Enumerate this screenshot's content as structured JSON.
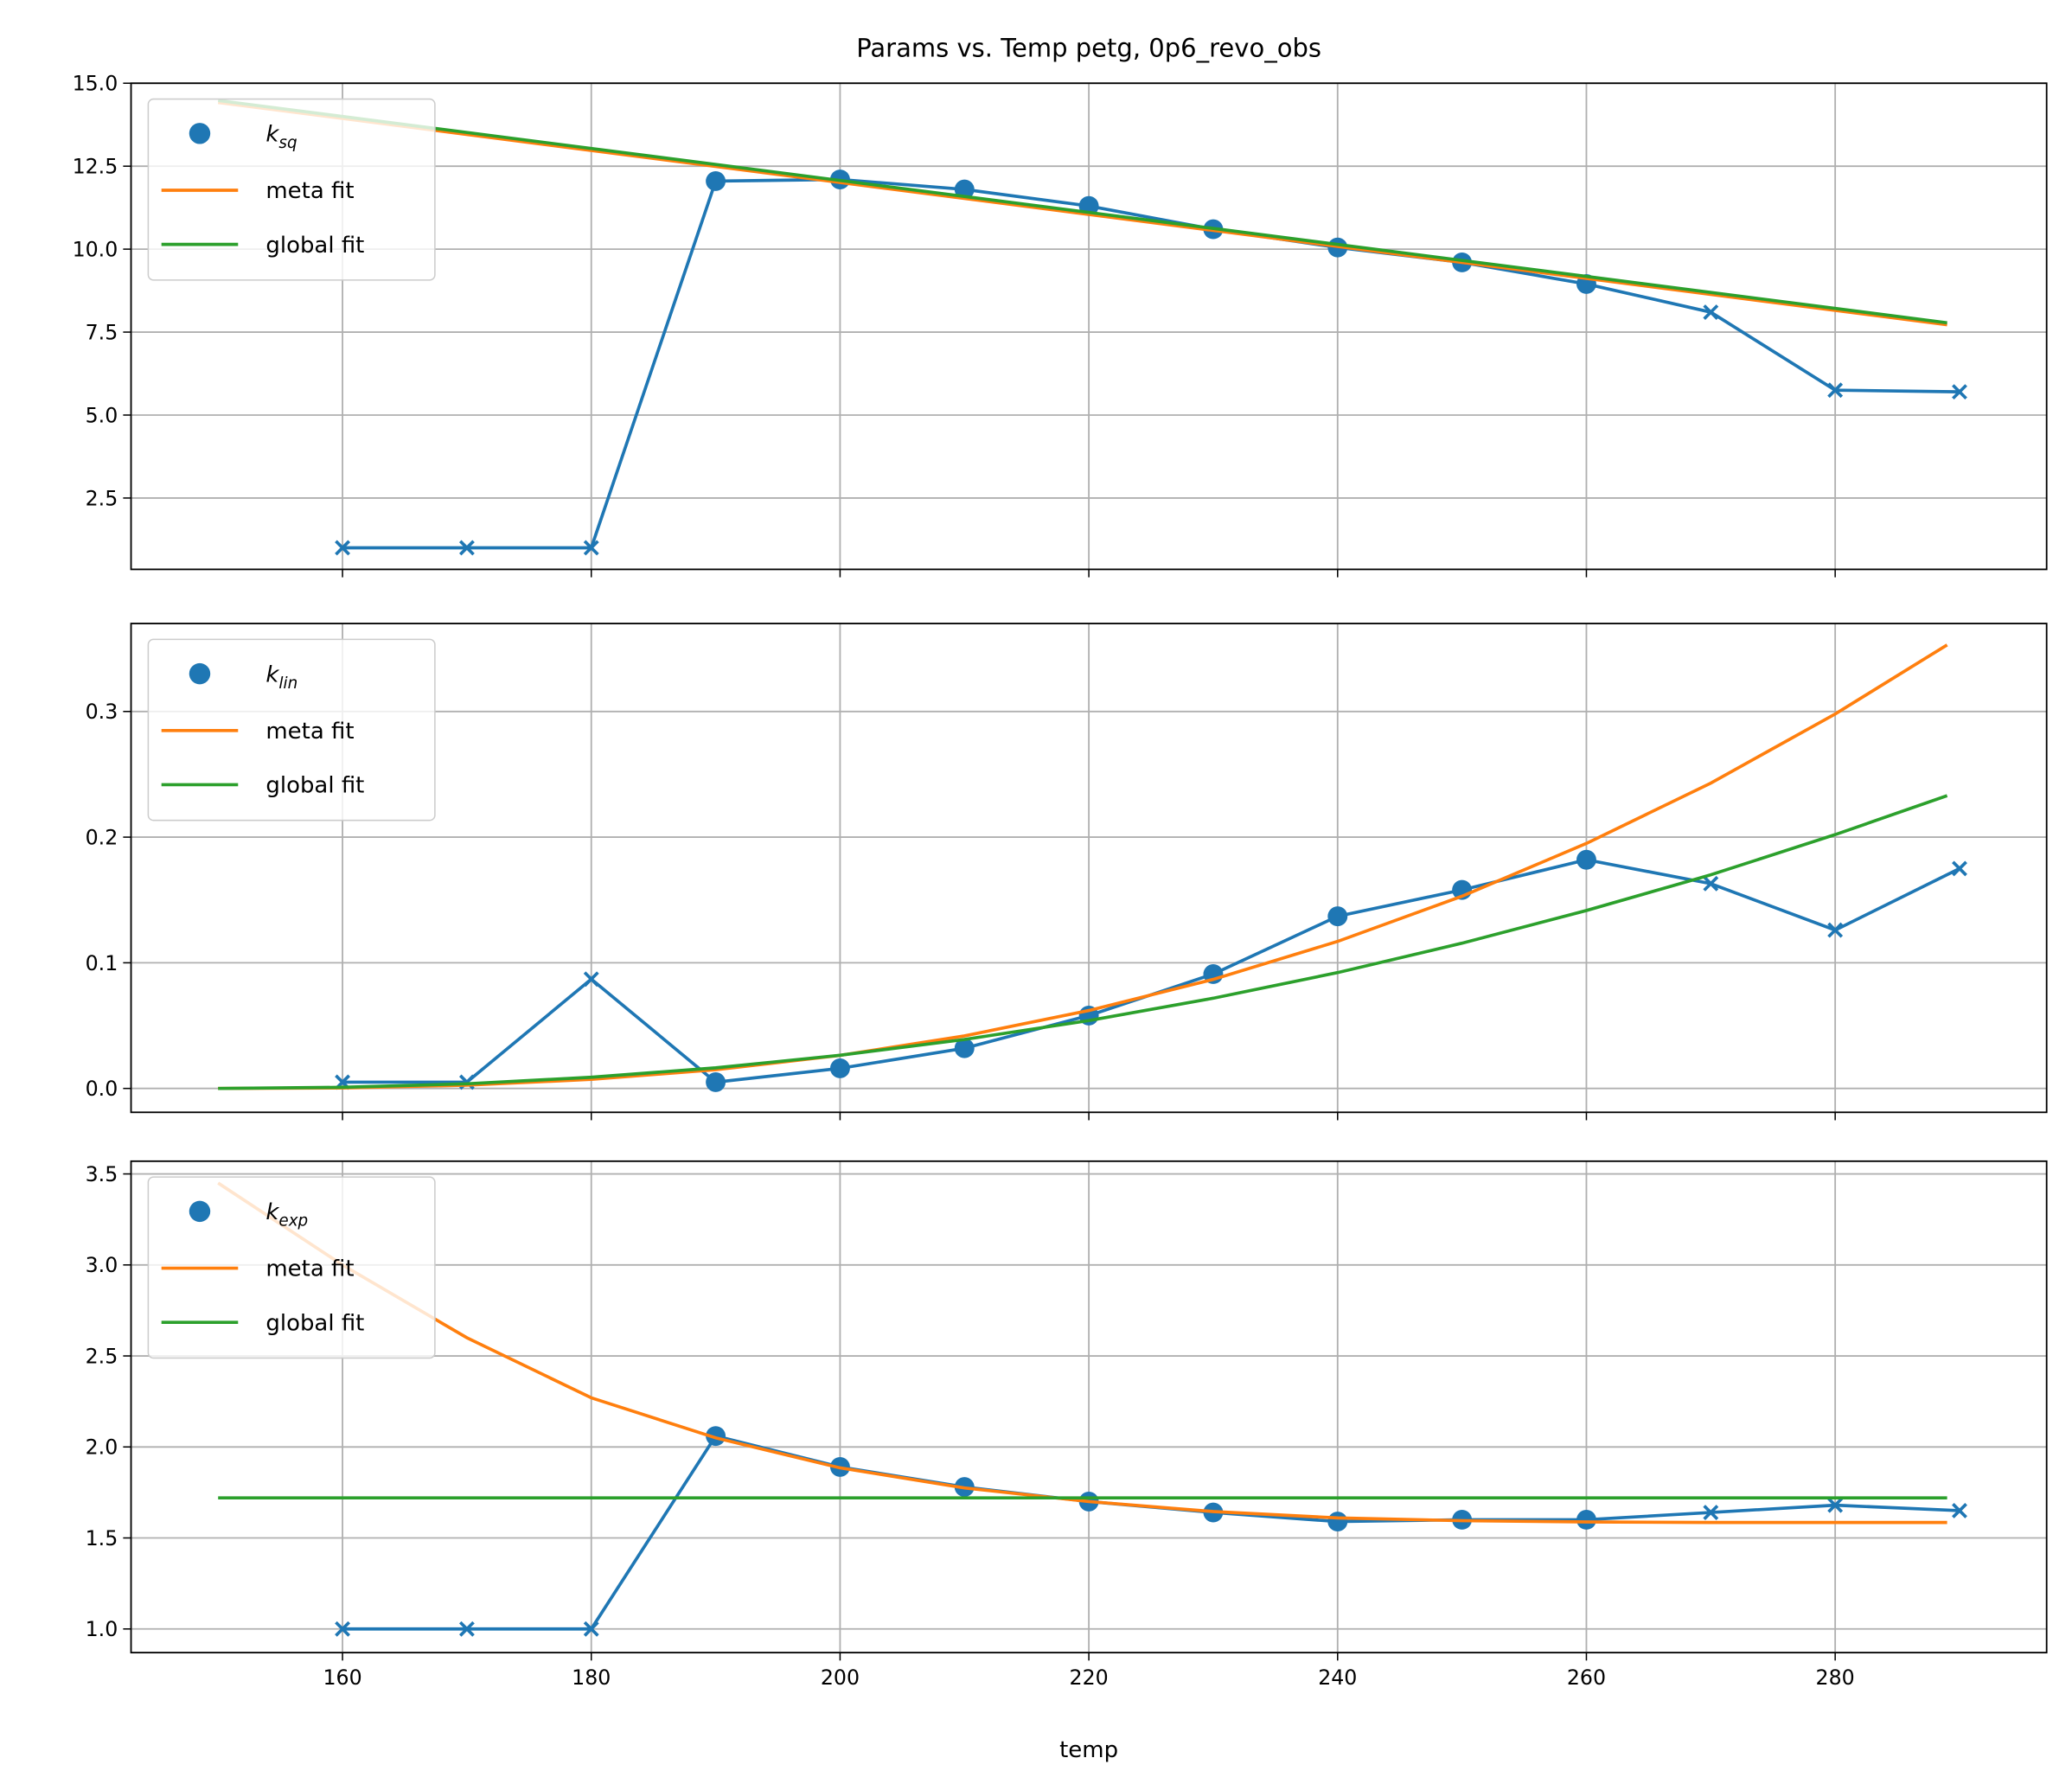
{
  "chart_data": {
    "type": "line",
    "title": "Params vs. Temp petg, 0p6_revo_obs",
    "xlabel": "temp",
    "xlim": [
      143,
      297
    ],
    "xticks": [
      160,
      180,
      200,
      220,
      240,
      260,
      280
    ],
    "grid": true,
    "colors": {
      "data": "#1f77b4",
      "meta": "#ff7f0e",
      "global": "#2ca02c"
    },
    "panels": [
      {
        "param": "k",
        "sub": "sq",
        "ylim": [
          0.35,
          15.0
        ],
        "yticks": [
          2.5,
          5.0,
          7.5,
          10.0,
          12.5,
          15.0
        ],
        "ytick_labels": [
          "2.5",
          "5.0",
          "7.5",
          "10.0",
          "12.5",
          "15.0"
        ],
        "legend": {
          "placement": "upper-left",
          "entries": [
            "k_sq",
            "meta fit",
            "global fit"
          ]
        },
        "data": {
          "x": [
            160,
            170,
            180,
            190,
            200,
            210,
            220,
            230,
            240,
            250,
            260,
            270,
            280,
            290
          ],
          "y": [
            1,
            1,
            1,
            12.05,
            12.1,
            11.8,
            11.3,
            10.6,
            10.05,
            9.6,
            8.95,
            8.1,
            5.75,
            5.7
          ],
          "marker": [
            "x",
            "x",
            "x",
            "o",
            "o",
            "o",
            "o",
            "o",
            "o",
            "o",
            "o",
            "x",
            "x",
            "x"
          ]
        },
        "meta_fit": {
          "x": [
            150,
            289
          ],
          "y": [
            14.42,
            7.72
          ]
        },
        "global_fit": {
          "x": [
            150,
            289
          ],
          "y": [
            14.48,
            7.78
          ]
        }
      },
      {
        "param": "k",
        "sub": "lin",
        "ylim": [
          -0.019,
          0.37
        ],
        "yticks": [
          0.0,
          0.1,
          0.2,
          0.3
        ],
        "ytick_labels": [
          "0.0",
          "0.1",
          "0.2",
          "0.3"
        ],
        "legend": {
          "placement": "upper-left",
          "entries": [
            "k_lin",
            "meta fit",
            "global fit"
          ]
        },
        "data": {
          "x": [
            160,
            170,
            180,
            190,
            200,
            210,
            220,
            230,
            240,
            250,
            260,
            270,
            280,
            290
          ],
          "y": [
            0.005,
            0.005,
            0.087,
            0.005,
            0.016,
            0.032,
            0.058,
            0.091,
            0.137,
            0.158,
            0.182,
            0.163,
            0.126,
            0.175
          ],
          "marker": [
            "x",
            "x",
            "x",
            "o",
            "o",
            "o",
            "o",
            "o",
            "o",
            "o",
            "o",
            "x",
            "x",
            "x"
          ]
        },
        "meta_fit": {
          "x": [
            150,
            160,
            170,
            180,
            190,
            200,
            210,
            220,
            230,
            240,
            250,
            260,
            270,
            280,
            289
          ],
          "y": [
            0,
            0.0004,
            0.0026,
            0.0072,
            0.0149,
            0.0263,
            0.0418,
            0.062,
            0.0868,
            0.117,
            0.153,
            0.195,
            0.243,
            0.298,
            0.353
          ]
        },
        "global_fit": {
          "x": [
            150,
            160,
            170,
            180,
            190,
            200,
            210,
            220,
            230,
            240,
            250,
            260,
            270,
            280,
            289
          ],
          "y": [
            0,
            0.0009,
            0.0037,
            0.0089,
            0.0164,
            0.0264,
            0.039,
            0.054,
            0.0718,
            0.0922,
            0.1156,
            0.1416,
            0.17,
            0.202,
            0.233
          ]
        }
      },
      {
        "param": "k",
        "sub": "exp",
        "ylim": [
          0.87,
          3.57
        ],
        "yticks": [
          1.0,
          1.5,
          2.0,
          2.5,
          3.0,
          3.5
        ],
        "ytick_labels": [
          "1.0",
          "1.5",
          "2.0",
          "2.5",
          "3.0",
          "3.5"
        ],
        "legend": {
          "placement": "upper-left",
          "entries": [
            "k_exp",
            "meta fit",
            "global fit"
          ]
        },
        "data": {
          "x": [
            160,
            170,
            180,
            190,
            200,
            210,
            220,
            230,
            240,
            250,
            260,
            270,
            280,
            290
          ],
          "y": [
            1,
            1,
            1,
            2.06,
            1.89,
            1.78,
            1.7,
            1.64,
            1.59,
            1.6,
            1.6,
            1.64,
            1.68,
            1.65
          ],
          "marker": [
            "x",
            "x",
            "x",
            "o",
            "o",
            "o",
            "o",
            "o",
            "o",
            "o",
            "o",
            "x",
            "x",
            "x"
          ]
        },
        "meta_fit": {
          "x": [
            150,
            160,
            170,
            180,
            190,
            200,
            210,
            220,
            230,
            240,
            250,
            260,
            270,
            280,
            289
          ],
          "y": [
            3.45,
            3.0,
            2.6,
            2.27,
            2.05,
            1.885,
            1.775,
            1.7,
            1.645,
            1.61,
            1.595,
            1.588,
            1.585,
            1.585,
            1.585
          ]
        },
        "global_fit": {
          "x": [
            150,
            289
          ],
          "y": [
            1.72,
            1.72
          ]
        }
      }
    ]
  },
  "labels": {
    "meta": "meta fit",
    "global": "global fit"
  }
}
